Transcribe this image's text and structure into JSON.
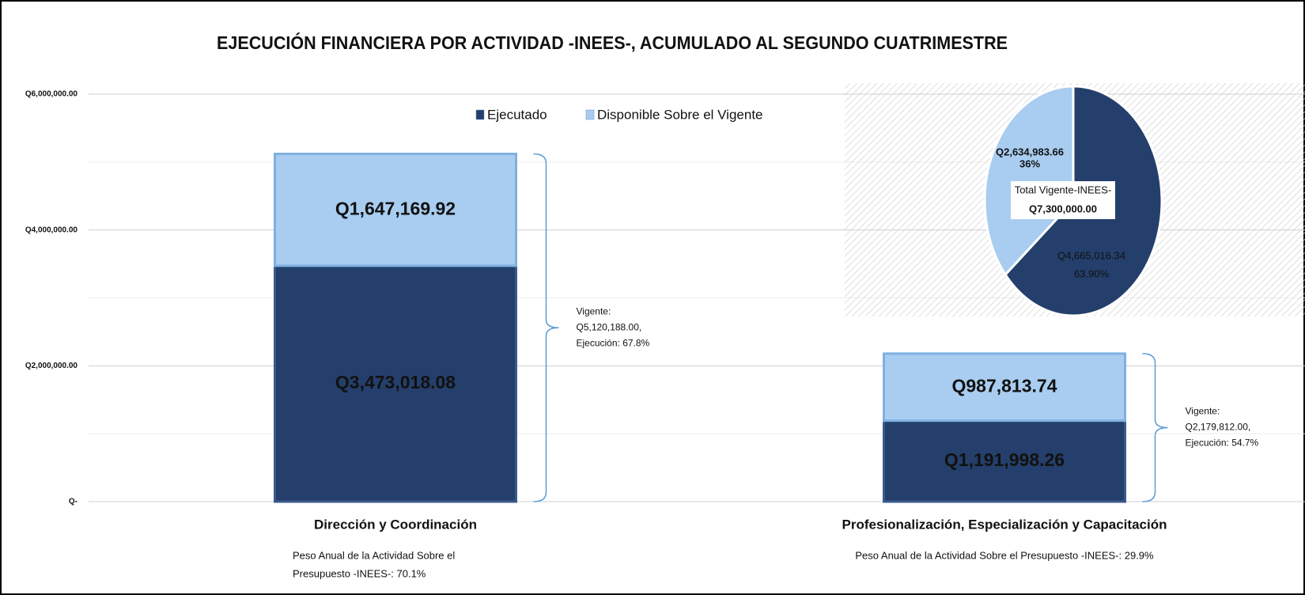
{
  "chart_data": [
    {
      "type": "bar",
      "title": "EJECUCIÓN FINANCIERA POR ACTIVIDAD -INEES-, ACUMULADO AL  SEGUNDO CUATRIMESTRE",
      "categories": [
        "Dirección y Coordinación",
        "Profesionalización, Especialización y Capacitación"
      ],
      "series": [
        {
          "name": "Ejecutado",
          "color": "#243f6b",
          "values": [
            3473018.08,
            1191998.26
          ],
          "value_labels": [
            "Q3,473,018.08",
            "Q1,191,998.26"
          ]
        },
        {
          "name": "Disponible Sobre el Vigente",
          "color": "#a9cdf0",
          "values": [
            1647169.92,
            987813.74
          ],
          "value_labels": [
            "Q1,647,169.92",
            "Q987,813.74"
          ]
        }
      ],
      "stacked": true,
      "ylim": [
        0,
        6000000
      ],
      "yticks": [
        {
          "value": 0,
          "label": "Q-"
        },
        {
          "value": 2000000,
          "label": "Q2,000,000.00"
        },
        {
          "value": 4000000,
          "label": "Q4,000,000.00"
        },
        {
          "value": 6000000,
          "label": "Q6,000,000.00"
        }
      ],
      "minor_yticks": [
        1000000,
        3000000,
        5000000
      ],
      "grid": true,
      "brace_annotations": [
        [
          "Vigente:",
          "Q5,120,188.00,",
          "Ejecución: 67.8%"
        ],
        [
          "Vigente:",
          "Q2,179,812.00,",
          "Ejecución: 54.7%"
        ]
      ],
      "category_notes": [
        [
          "Peso  Anual de la Actividad Sobre el",
          "Presupuesto -INEES-: 70.1%"
        ],
        [
          "Peso  Anual de la Actividad Sobre el Presupuesto -INEES-: 29.9%"
        ]
      ]
    },
    {
      "type": "pie",
      "categories": [
        "Ejecutado",
        "Disponible Sobre el Vigente"
      ],
      "values": [
        4665016.34,
        2634983.66
      ],
      "value_labels": [
        "Q4,665,016.34",
        "Q2,634,983.66"
      ],
      "percent_labels": [
        "63.90%",
        "36%"
      ],
      "colors": [
        "#243f6b",
        "#a9cdf0"
      ],
      "center_label": [
        "Total Vigente-INEES-",
        "Q7,300,000.00"
      ]
    }
  ]
}
